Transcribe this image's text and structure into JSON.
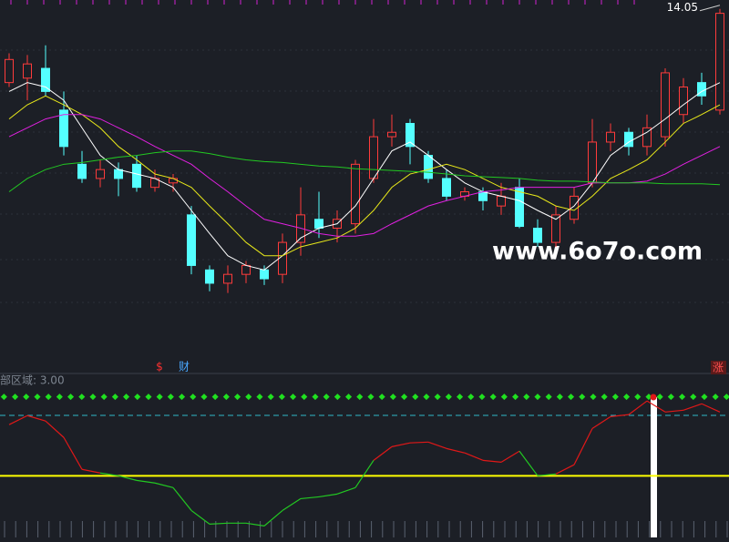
{
  "chart_data": [
    {
      "type": "candlestick",
      "open": [
        13.22,
        13.27,
        13.38,
        12.91,
        12.3,
        12.14,
        12.24,
        12.3,
        12.04,
        12.09,
        11.73,
        11.11,
        10.96,
        11.06,
        11.11,
        11.06,
        11.42,
        11.68,
        11.58,
        11.63,
        12.14,
        12.61,
        12.76,
        12.4,
        12.14,
        11.94,
        11.99,
        11.83,
        12.04,
        11.58,
        11.42,
        11.68,
        12.09,
        12.55,
        12.66,
        12.5,
        12.61,
        12.86,
        13.22,
        12.91
      ],
      "high": [
        13.55,
        13.53,
        13.64,
        13.12,
        12.45,
        12.35,
        12.32,
        12.4,
        12.24,
        12.19,
        11.83,
        11.16,
        11.16,
        11.21,
        11.16,
        11.52,
        12.04,
        11.99,
        11.78,
        12.35,
        12.81,
        12.86,
        12.81,
        12.45,
        12.24,
        12.04,
        12.04,
        12.09,
        12.14,
        11.68,
        11.83,
        12.04,
        12.81,
        12.76,
        12.71,
        12.86,
        13.38,
        13.27,
        13.33,
        14.05
      ],
      "low": [
        13.17,
        13.02,
        13.07,
        12.4,
        12.09,
        12.04,
        11.94,
        11.99,
        11.99,
        11.99,
        11.06,
        10.87,
        10.85,
        10.96,
        10.94,
        10.96,
        11.27,
        11.47,
        11.42,
        11.52,
        12.09,
        12.5,
        12.3,
        12.09,
        11.89,
        11.89,
        11.78,
        11.73,
        11.58,
        11.37,
        11.37,
        11.63,
        12.04,
        12.45,
        12.4,
        12.4,
        12.5,
        12.76,
        12.97,
        12.86
      ],
      "close": [
        13.48,
        13.43,
        13.12,
        12.5,
        12.14,
        12.24,
        12.14,
        12.04,
        12.14,
        12.14,
        11.16,
        10.96,
        11.06,
        11.16,
        11.01,
        11.42,
        11.73,
        11.58,
        11.68,
        12.3,
        12.61,
        12.66,
        12.5,
        12.14,
        11.94,
        11.99,
        11.89,
        11.94,
        11.6,
        11.42,
        11.73,
        11.94,
        12.55,
        12.66,
        12.5,
        12.71,
        13.33,
        13.17,
        13.07,
        14.0
      ],
      "up_color": "#ff3b3b",
      "down_color": "#54ffff",
      "series": [
        {
          "color": "#ffffff",
          "values": [
            13.12,
            13.22,
            13.17,
            13.02,
            12.71,
            12.4,
            12.24,
            12.19,
            12.14,
            12.04,
            11.78,
            11.52,
            11.27,
            11.16,
            11.11,
            11.27,
            11.47,
            11.58,
            11.63,
            11.83,
            12.14,
            12.45,
            12.55,
            12.4,
            12.24,
            12.09,
            11.99,
            11.94,
            11.89,
            11.78,
            11.68,
            11.83,
            12.09,
            12.4,
            12.55,
            12.66,
            12.81,
            12.97,
            13.12,
            13.22
          ]
        },
        {
          "color": "#e8e81a",
          "values": [
            12.81,
            12.97,
            13.07,
            12.97,
            12.86,
            12.71,
            12.5,
            12.35,
            12.19,
            12.14,
            12.04,
            11.83,
            11.63,
            11.42,
            11.27,
            11.27,
            11.37,
            11.42,
            11.47,
            11.58,
            11.78,
            12.04,
            12.19,
            12.24,
            12.3,
            12.24,
            12.14,
            12.04,
            11.99,
            11.94,
            11.83,
            11.78,
            11.94,
            12.14,
            12.24,
            12.35,
            12.55,
            12.76,
            12.86,
            12.97
          ]
        },
        {
          "color": "#e020e0",
          "values": [
            12.61,
            12.71,
            12.81,
            12.86,
            12.86,
            12.81,
            12.71,
            12.61,
            12.5,
            12.4,
            12.3,
            12.14,
            11.99,
            11.83,
            11.68,
            11.63,
            11.58,
            11.52,
            11.49,
            11.49,
            11.52,
            11.63,
            11.73,
            11.83,
            11.89,
            11.94,
            11.99,
            12.01,
            12.04,
            12.04,
            12.04,
            12.04,
            12.09,
            12.09,
            12.09,
            12.11,
            12.19,
            12.3,
            12.4,
            12.5
          ]
        },
        {
          "color": "#22c822",
          "values": [
            11.99,
            12.14,
            12.24,
            12.3,
            12.32,
            12.35,
            12.38,
            12.4,
            12.43,
            12.45,
            12.45,
            12.42,
            12.38,
            12.35,
            12.33,
            12.32,
            12.3,
            12.28,
            12.27,
            12.25,
            12.24,
            12.23,
            12.22,
            12.21,
            12.19,
            12.17,
            12.16,
            12.15,
            12.14,
            12.12,
            12.11,
            12.11,
            12.1,
            12.09,
            12.09,
            12.09,
            12.08,
            12.08,
            12.08,
            12.07
          ]
        }
      ],
      "ylim": [
        10.2,
        14.15
      ],
      "annotations": [
        "$",
        "财",
        "涨"
      ],
      "watermark": "www.6o7o.com"
    },
    {
      "type": "line",
      "values": [
        5.55,
        6.0,
        5.73,
        4.91,
        3.32,
        3.14,
        3.0,
        2.77,
        2.64,
        2.41,
        1.27,
        0.59,
        0.64,
        0.64,
        0.5,
        1.27,
        1.86,
        1.95,
        2.09,
        2.41,
        3.77,
        4.45,
        4.64,
        4.68,
        4.36,
        4.14,
        3.77,
        3.68,
        4.23,
        3.0,
        3.09,
        3.55,
        5.36,
        5.95,
        6.05,
        6.73,
        6.18,
        6.27,
        6.59,
        6.18
      ],
      "up_color": "#e01818",
      "down_color": "#22c822",
      "reference": {
        "value": 3,
        "label": "部区域: 3.00",
        "color": "#ffff00"
      },
      "ylim": [
        -0.3,
        8.1
      ]
    }
  ]
}
